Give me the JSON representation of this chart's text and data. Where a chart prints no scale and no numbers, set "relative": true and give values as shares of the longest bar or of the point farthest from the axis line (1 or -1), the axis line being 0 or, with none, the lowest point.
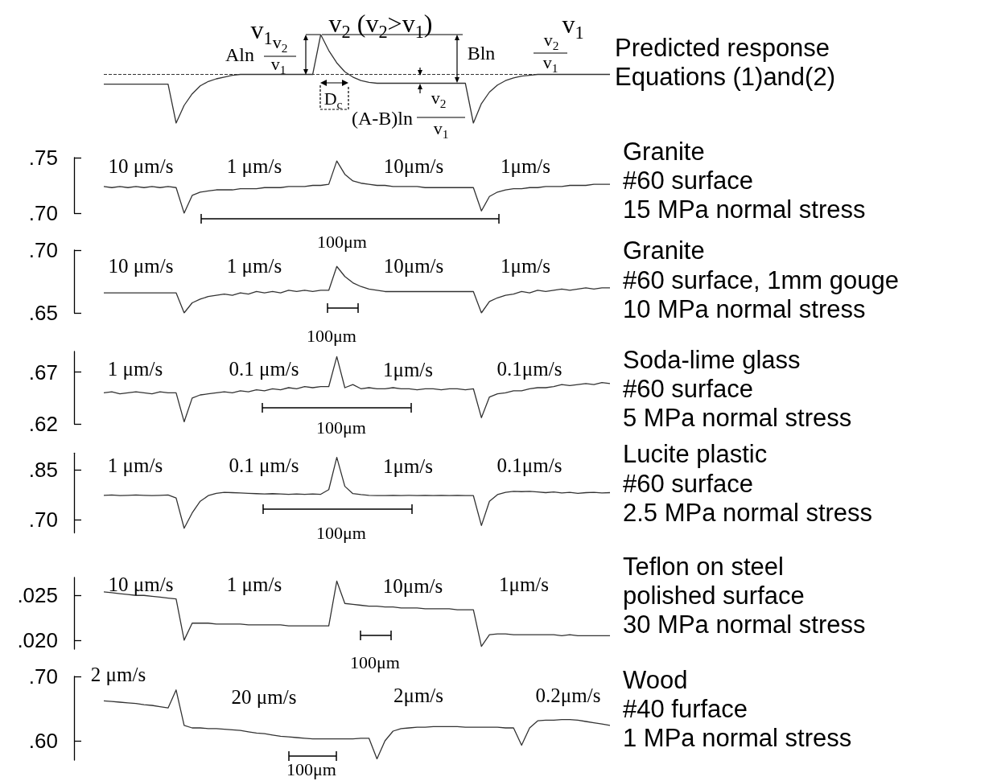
{
  "chart_data": [
    {
      "type": "line",
      "relative": true,
      "marker": "none",
      "color": "#333333",
      "title": "Predicted response",
      "subtitle": "Equations (1)and(2)",
      "annotations": [
        "v$_{1}$",
        "v$_{2}$ (v$_{2}$>v$_{1}$)",
        "v$_{1}$",
        "Aln",
        "v$_{2}$",
        "v$_{1}$",
        "Bln",
        "v$_{2}$",
        "v$_{1}$",
        "D$_{c}$",
        "(A-B)ln",
        "v$_{2}$",
        "v$_{1}$"
      ],
      "ref_lines": [
        {
          "axis": "y",
          "value": 0.55,
          "line_style": "dashed",
          "color": "#333333"
        }
      ],
      "categories": [
        null,
        null,
        null,
        null,
        null,
        null,
        null,
        null,
        null,
        null,
        null,
        null,
        null,
        null,
        null,
        null,
        null,
        null,
        null,
        null,
        null,
        null,
        null,
        null,
        null,
        null,
        null,
        null,
        null,
        null,
        null,
        null,
        null,
        null,
        null,
        null,
        null,
        null,
        null,
        null,
        null,
        null,
        null,
        null,
        null,
        null,
        null,
        null,
        null,
        null,
        null,
        null,
        null,
        null,
        null,
        null,
        null,
        null,
        null,
        null,
        null,
        null,
        null,
        null
      ],
      "values": [
        0.44,
        0.44,
        0.44,
        0.44,
        0.44,
        0.44,
        0.44,
        0.44,
        0.44,
        0,
        0.2,
        0.33,
        0.42,
        0.47,
        0.5,
        0.52,
        0.54,
        0.55,
        0.55,
        0.55,
        0.55,
        0.55,
        0.55,
        0.55,
        0.55,
        0.55,
        0.55,
        1,
        0.82,
        0.68,
        0.58,
        0.52,
        0.48,
        0.46,
        0.45,
        0.45,
        0.45,
        0.45,
        0.45,
        0.45,
        0.45,
        0.45,
        0.45,
        0.45,
        0.45,
        0.45,
        0,
        0.22,
        0.35,
        0.43,
        0.48,
        0.51,
        0.53,
        0.54,
        0.55,
        0.55,
        0.55,
        0.55,
        0.55,
        0.55,
        0.55,
        0.55,
        0.55,
        0.55
      ]
    },
    {
      "type": "line",
      "marker": "none",
      "color": "#333333",
      "title": "Granite",
      "subtitle": "#60 surface\n15 MPa normal stress",
      "annotations": [
        "10 μm/s",
        "1 μm/s",
        "10μm/s",
        "1μm/s",
        "100μm"
      ],
      "ylim": [
        0.7,
        0.75
      ],
      "yticks": [
        {
          "value": 0.75,
          "label": ".75"
        },
        {
          "value": 0.7,
          "label": ".70"
        }
      ],
      "categories": [
        null,
        null,
        null,
        null,
        null,
        null,
        null,
        null,
        null,
        null,
        null,
        null,
        null,
        null,
        null,
        null,
        null,
        null,
        null,
        null,
        null,
        null,
        null,
        null,
        null,
        null,
        null,
        null,
        null,
        null,
        null,
        null,
        null,
        null,
        null,
        null,
        null,
        null,
        null,
        null,
        null,
        null,
        null,
        null,
        null,
        null,
        null,
        null,
        null,
        null,
        null,
        null,
        null,
        null,
        null,
        null,
        null,
        null,
        null,
        null,
        null,
        null,
        null,
        null
      ],
      "values": [
        0.724,
        0.723,
        0.724,
        0.723,
        0.724,
        0.723,
        0.724,
        0.723,
        0.724,
        0.723,
        0.7,
        0.716,
        0.719,
        0.72,
        0.721,
        0.721,
        0.721,
        0.722,
        0.722,
        0.722,
        0.723,
        0.723,
        0.723,
        0.724,
        0.724,
        0.724,
        0.725,
        0.725,
        0.726,
        0.747,
        0.735,
        0.729,
        0.727,
        0.726,
        0.725,
        0.725,
        0.724,
        0.724,
        0.724,
        0.724,
        0.723,
        0.723,
        0.723,
        0.723,
        0.723,
        0.723,
        0.723,
        0.702,
        0.715,
        0.719,
        0.721,
        0.722,
        0.722,
        0.723,
        0.723,
        0.724,
        0.724,
        0.724,
        0.725,
        0.725,
        0.725,
        0.726,
        0.726,
        0.726
      ]
    },
    {
      "type": "line",
      "marker": "none",
      "color": "#333333",
      "title": "Granite",
      "subtitle": "#60 surface, 1mm gouge\n10 MPa normal stress",
      "annotations": [
        "10 μm/s",
        "1 μm/s",
        "10μm/s",
        "1μm/s",
        "100μm"
      ],
      "ylim": [
        0.65,
        0.7
      ],
      "yticks": [
        {
          "value": 0.7,
          "label": ".70"
        },
        {
          "value": 0.65,
          "label": ".65"
        }
      ],
      "categories": [
        null,
        null,
        null,
        null,
        null,
        null,
        null,
        null,
        null,
        null,
        null,
        null,
        null,
        null,
        null,
        null,
        null,
        null,
        null,
        null,
        null,
        null,
        null,
        null,
        null,
        null,
        null,
        null,
        null,
        null,
        null,
        null,
        null,
        null,
        null,
        null,
        null,
        null,
        null,
        null,
        null,
        null,
        null,
        null,
        null,
        null,
        null,
        null,
        null,
        null,
        null,
        null,
        null,
        null,
        null,
        null,
        null,
        null,
        null,
        null,
        null,
        null,
        null,
        null
      ],
      "values": [
        0.666,
        0.666,
        0.666,
        0.666,
        0.666,
        0.666,
        0.666,
        0.666,
        0.666,
        0.666,
        0.65,
        0.658,
        0.661,
        0.663,
        0.664,
        0.665,
        0.664,
        0.666,
        0.665,
        0.667,
        0.666,
        0.667,
        0.666,
        0.668,
        0.667,
        0.668,
        0.667,
        0.668,
        0.668,
        0.687,
        0.679,
        0.674,
        0.671,
        0.669,
        0.668,
        0.667,
        0.667,
        0.667,
        0.667,
        0.667,
        0.667,
        0.667,
        0.667,
        0.667,
        0.667,
        0.667,
        0.667,
        0.65,
        0.659,
        0.662,
        0.664,
        0.665,
        0.667,
        0.666,
        0.668,
        0.667,
        0.668,
        0.669,
        0.668,
        0.669,
        0.67,
        0.669,
        0.67,
        0.67
      ]
    },
    {
      "type": "line",
      "marker": "none",
      "color": "#333333",
      "title": "Soda-lime glass",
      "subtitle": "#60 surface\n5 MPa normal stress",
      "annotations": [
        "1 μm/s",
        "0.1 μm/s",
        "1μm/s",
        "0.1μm/s",
        "100μm"
      ],
      "ylim": [
        0.62,
        0.69
      ],
      "yticks": [
        {
          "value": 0.67,
          "label": ".67"
        },
        {
          "value": 0.62,
          "label": ".62"
        }
      ],
      "categories": [
        null,
        null,
        null,
        null,
        null,
        null,
        null,
        null,
        null,
        null,
        null,
        null,
        null,
        null,
        null,
        null,
        null,
        null,
        null,
        null,
        null,
        null,
        null,
        null,
        null,
        null,
        null,
        null,
        null,
        null,
        null,
        null,
        null,
        null,
        null,
        null,
        null,
        null,
        null,
        null,
        null,
        null,
        null,
        null,
        null,
        null,
        null,
        null,
        null,
        null,
        null,
        null,
        null,
        null,
        null,
        null,
        null,
        null,
        null,
        null,
        null,
        null,
        null,
        null
      ],
      "values": [
        0.65,
        0.651,
        0.649,
        0.65,
        0.651,
        0.65,
        0.649,
        0.651,
        0.65,
        0.65,
        0.622,
        0.645,
        0.648,
        0.649,
        0.65,
        0.651,
        0.65,
        0.652,
        0.651,
        0.653,
        0.652,
        0.654,
        0.653,
        0.655,
        0.654,
        0.656,
        0.655,
        0.656,
        0.656,
        0.685,
        0.655,
        0.658,
        0.654,
        0.655,
        0.654,
        0.654,
        0.655,
        0.654,
        0.654,
        0.653,
        0.654,
        0.654,
        0.653,
        0.654,
        0.654,
        0.653,
        0.654,
        0.626,
        0.646,
        0.649,
        0.65,
        0.652,
        0.652,
        0.654,
        0.655,
        0.655,
        0.656,
        0.658,
        0.657,
        0.658,
        0.659,
        0.658,
        0.66,
        0.659
      ]
    },
    {
      "type": "line",
      "marker": "none",
      "color": "#333333",
      "title": "Lucite plastic",
      "subtitle": "#60 surface\n2.5 MPa normal stress",
      "annotations": [
        "1 μm/s",
        "0.1 μm/s",
        "1μm/s",
        "0.1μm/s",
        "100μm"
      ],
      "ylim": [
        0.66,
        0.9
      ],
      "yticks": [
        {
          "value": 0.85,
          "label": ".85"
        },
        {
          "value": 0.7,
          "label": ".70"
        }
      ],
      "categories": [
        null,
        null,
        null,
        null,
        null,
        null,
        null,
        null,
        null,
        null,
        null,
        null,
        null,
        null,
        null,
        null,
        null,
        null,
        null,
        null,
        null,
        null,
        null,
        null,
        null,
        null,
        null,
        null,
        null,
        null,
        null,
        null,
        null,
        null,
        null,
        null,
        null,
        null,
        null,
        null,
        null,
        null,
        null,
        null,
        null,
        null,
        null,
        null,
        null,
        null,
        null,
        null,
        null,
        null,
        null,
        null,
        null,
        null,
        null,
        null,
        null,
        null,
        null,
        null
      ],
      "values": [
        0.773,
        0.774,
        0.772,
        0.773,
        0.774,
        0.773,
        0.772,
        0.773,
        0.774,
        0.765,
        0.674,
        0.72,
        0.755,
        0.772,
        0.779,
        0.782,
        0.781,
        0.78,
        0.779,
        0.778,
        0.777,
        0.778,
        0.777,
        0.776,
        0.777,
        0.776,
        0.777,
        0.776,
        0.79,
        0.887,
        0.8,
        0.778,
        0.775,
        0.773,
        0.772,
        0.772,
        0.773,
        0.772,
        0.773,
        0.772,
        0.773,
        0.772,
        0.773,
        0.772,
        0.773,
        0.772,
        0.772,
        0.682,
        0.755,
        0.775,
        0.782,
        0.785,
        0.784,
        0.785,
        0.783,
        0.781,
        0.783,
        0.78,
        0.782,
        0.779,
        0.781,
        0.782,
        0.78,
        0.781
      ]
    },
    {
      "type": "line",
      "marker": "none",
      "color": "#333333",
      "title": "Teflon on steel",
      "subtitle": "polished surface\n30 MPa normal stress",
      "annotations": [
        "10 μm/s",
        "1 μm/s",
        "10μm/s",
        "1μm/s",
        "100μm"
      ],
      "ylim": [
        0.019,
        0.027
      ],
      "yticks": [
        {
          "value": 0.025,
          "label": ".025"
        },
        {
          "value": 0.02,
          "label": ".020"
        }
      ],
      "categories": [
        null,
        null,
        null,
        null,
        null,
        null,
        null,
        null,
        null,
        null,
        null,
        null,
        null,
        null,
        null,
        null,
        null,
        null,
        null,
        null,
        null,
        null,
        null,
        null,
        null,
        null,
        null,
        null,
        null,
        null,
        null,
        null,
        null,
        null,
        null,
        null,
        null,
        null,
        null,
        null,
        null,
        null,
        null,
        null,
        null,
        null,
        null,
        null,
        null,
        null,
        null,
        null,
        null,
        null,
        null,
        null,
        null,
        null,
        null,
        null,
        null,
        null,
        null,
        null
      ],
      "values": [
        0.0254,
        0.0253,
        0.0252,
        0.0251,
        0.025,
        0.025,
        0.0249,
        0.0248,
        0.0247,
        0.0246,
        0.02,
        0.0219,
        0.0219,
        0.0219,
        0.0218,
        0.0218,
        0.0218,
        0.0218,
        0.0217,
        0.0217,
        0.0217,
        0.0217,
        0.0217,
        0.0216,
        0.0216,
        0.0216,
        0.0216,
        0.0216,
        0.0216,
        0.0266,
        0.0241,
        0.024,
        0.0239,
        0.0238,
        0.0238,
        0.0237,
        0.0237,
        0.0236,
        0.0236,
        0.0236,
        0.0235,
        0.0235,
        0.0235,
        0.0235,
        0.0234,
        0.0234,
        0.0234,
        0.0193,
        0.0206,
        0.0207,
        0.0207,
        0.0206,
        0.0206,
        0.0206,
        0.0206,
        0.0206,
        0.0206,
        0.0205,
        0.0206,
        0.0205,
        0.0205,
        0.0205,
        0.0205,
        0.0205
      ]
    },
    {
      "type": "line",
      "marker": "none",
      "color": "#333333",
      "title": "Wood",
      "subtitle": "#40 furface\n1 MPa normal stress",
      "annotations": [
        "2 μm/s",
        "20 μm/s",
        "2μm/s",
        "0.2μm/s",
        "100μm"
      ],
      "ylim": [
        0.57,
        0.7
      ],
      "yticks": [
        {
          "value": 0.7,
          "label": ".70"
        },
        {
          "value": 0.6,
          "label": ".60"
        }
      ],
      "categories": [
        null,
        null,
        null,
        null,
        null,
        null,
        null,
        null,
        null,
        null,
        null,
        null,
        null,
        null,
        null,
        null,
        null,
        null,
        null,
        null,
        null,
        null,
        null,
        null,
        null,
        null,
        null,
        null,
        null,
        null,
        null,
        null,
        null,
        null,
        null,
        null,
        null,
        null,
        null,
        null,
        null,
        null,
        null,
        null,
        null,
        null,
        null,
        null,
        null,
        null,
        null,
        null,
        null,
        null,
        null,
        null,
        null,
        null,
        null,
        null,
        null,
        null,
        null,
        null
      ],
      "values": [
        0.662,
        0.661,
        0.66,
        0.659,
        0.658,
        0.656,
        0.655,
        0.653,
        0.651,
        0.679,
        0.624,
        0.62,
        0.62,
        0.619,
        0.619,
        0.618,
        0.617,
        0.616,
        0.614,
        0.612,
        0.611,
        0.609,
        0.607,
        0.606,
        0.605,
        0.604,
        0.603,
        0.603,
        0.603,
        0.603,
        0.603,
        0.603,
        0.604,
        0.604,
        0.572,
        0.6,
        0.615,
        0.619,
        0.62,
        0.621,
        0.621,
        0.622,
        0.622,
        0.622,
        0.622,
        0.621,
        0.621,
        0.621,
        0.621,
        0.621,
        0.62,
        0.62,
        0.593,
        0.62,
        0.631,
        0.632,
        0.632,
        0.633,
        0.633,
        0.632,
        0.63,
        0.628,
        0.626,
        0.624
      ]
    }
  ]
}
